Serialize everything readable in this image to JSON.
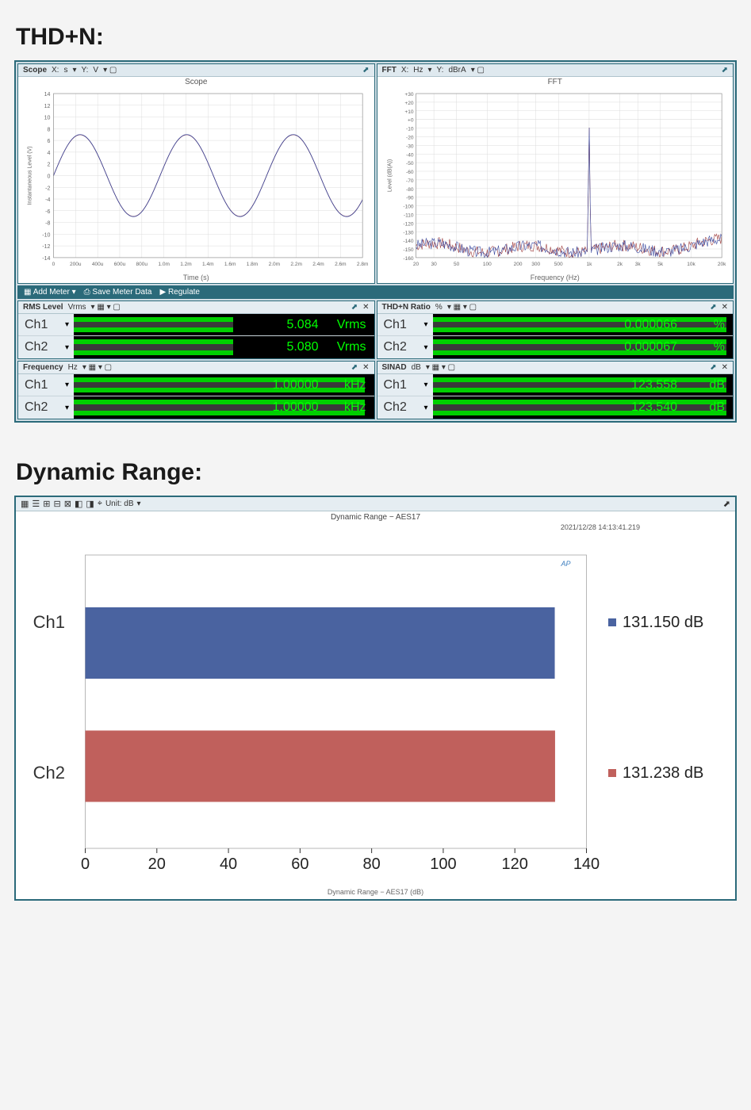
{
  "section1_title": "THD+N:",
  "scope": {
    "header": {
      "label": "Scope",
      "x": "X:",
      "xu": "s",
      "y": "Y:",
      "yu": "V"
    },
    "title": "Scope",
    "xcaption": "Time (s)",
    "ylabel": "Instantaneous Level (V)",
    "ylim": [
      -14,
      14
    ],
    "yticks": [
      -14,
      -12,
      -10,
      -8,
      -6,
      -4,
      -2,
      0,
      2,
      4,
      6,
      8,
      10,
      12,
      14
    ],
    "xlim": [
      0,
      0.0029
    ],
    "xticks": [
      "0",
      "200u",
      "400u",
      "600u",
      "800u",
      "1.0m",
      "1.2m",
      "1.4m",
      "1.6m",
      "1.8m",
      "2.0m",
      "2.2m",
      "2.4m",
      "2.6m",
      "2.8m"
    ],
    "sine": {
      "amp": 7,
      "freq_hz": 1000,
      "color1": "#3a4aa0",
      "color2": "#a04040"
    },
    "bg": "#ffffff",
    "grid": "#dcdcdc",
    "axis": "#888"
  },
  "fft": {
    "header": {
      "label": "FFT",
      "x": "X:",
      "xu": "Hz",
      "y": "Y:",
      "yu": "dBrA"
    },
    "title": "FFT",
    "xcaption": "Frequency (Hz)",
    "ylabel": "Level (dB(A))",
    "ylim": [
      -160,
      30
    ],
    "yticks": [
      30,
      20,
      10,
      0,
      -10,
      -20,
      -30,
      -40,
      -50,
      -60,
      -70,
      -80,
      -90,
      -100,
      -110,
      -120,
      -130,
      -140,
      -150,
      -160
    ],
    "xlog_ticks": [
      20,
      30,
      50,
      100,
      200,
      300,
      500,
      "1k",
      "2k",
      "3k",
      "5k",
      "10k",
      "20k"
    ],
    "peak_hz": 1000,
    "peak_db": 0,
    "noise_floor_db": -150,
    "color1": "#3a4aa0",
    "color2": "#a04040",
    "bg": "#ffffff",
    "grid": "#dcdcdc",
    "axis": "#888"
  },
  "toolbar": {
    "add": "Add Meter",
    "save": "Save Meter Data",
    "reg": "Regulate"
  },
  "meters": {
    "rms": {
      "title": "RMS Level",
      "unit_hdr": "Vrms",
      "rows": [
        {
          "ch": "Ch1",
          "val": "5.084",
          "unit": "Vrms",
          "fill": 0.53
        },
        {
          "ch": "Ch2",
          "val": "5.080",
          "unit": "Vrms",
          "fill": 0.53
        }
      ]
    },
    "thdn": {
      "title": "THD+N Ratio",
      "unit_hdr": "%",
      "rows": [
        {
          "ch": "Ch1",
          "val": "0.000066",
          "unit": "%",
          "fill": 0.98
        },
        {
          "ch": "Ch2",
          "val": "0.000067",
          "unit": "%",
          "fill": 0.98
        }
      ]
    },
    "freq": {
      "title": "Frequency",
      "unit_hdr": "Hz",
      "rows": [
        {
          "ch": "Ch1",
          "val": "1.00000",
          "unit": "kHz",
          "fill": 0.97
        },
        {
          "ch": "Ch2",
          "val": "1.00000",
          "unit": "kHz",
          "fill": 0.97
        }
      ]
    },
    "sinad": {
      "title": "SINAD",
      "unit_hdr": "dB",
      "rows": [
        {
          "ch": "Ch1",
          "val": "123.558",
          "unit": "dB",
          "fill": 0.98
        },
        {
          "ch": "Ch2",
          "val": "123.540",
          "unit": "dB",
          "fill": 0.98
        }
      ]
    }
  },
  "section2_title": "Dynamic Range:",
  "dr": {
    "toolbar_unit": "Unit: dB",
    "title": "Dynamic Range − AES17",
    "timestamp": "2021/12/28 14:13:41.219",
    "xcaption": "Dynamic Range − AES17 (dB)",
    "xlim": [
      0,
      140
    ],
    "xtick_step": 20,
    "bars": [
      {
        "label": "Ch1",
        "value": 131.15,
        "display": "131.150 dB",
        "color": "#4a63a0"
      },
      {
        "label": "Ch2",
        "value": 131.238,
        "display": "131.238 dB",
        "color": "#c0605c"
      }
    ],
    "border": "#999",
    "tick_color": "#333"
  }
}
